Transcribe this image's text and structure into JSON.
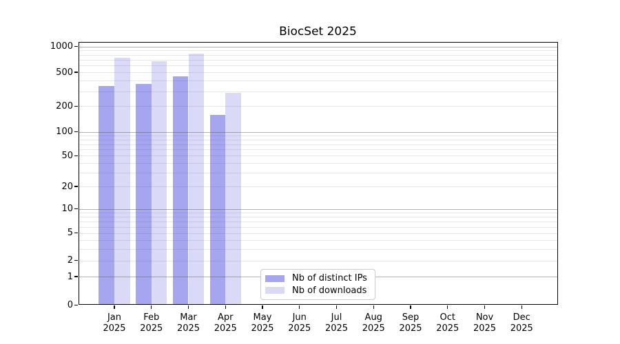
{
  "chart_data": {
    "type": "bar",
    "title": "BiocSet 2025",
    "categories": [
      "Jan",
      "Feb",
      "Mar",
      "Apr",
      "May",
      "Jun",
      "Jul",
      "Aug",
      "Sep",
      "Oct",
      "Nov",
      "Dec"
    ],
    "year_label": "2025",
    "series": [
      {
        "name": "Nb of distinct IPs",
        "color": "#a5a5f0",
        "values": [
          344,
          366,
          451,
          159,
          null,
          null,
          null,
          null,
          null,
          null,
          null,
          null
        ]
      },
      {
        "name": "Nb of downloads",
        "color": "#dadaf8",
        "values": [
          744,
          670,
          827,
          287,
          null,
          null,
          null,
          null,
          null,
          null,
          null,
          null
        ]
      }
    ],
    "y_axis": {
      "scale": "symlog",
      "ticks": [
        0,
        1,
        2,
        5,
        10,
        20,
        50,
        100,
        200,
        500,
        1000
      ],
      "max": 1100
    },
    "legend": {
      "position": "bottom-center",
      "entries": [
        "Nb of distinct IPs",
        "Nb of downloads"
      ],
      "border_color": "#cccccc"
    },
    "grid": {
      "major_lines": [
        1,
        10,
        100,
        1000
      ],
      "major_color": "#b0b0b0",
      "minor_color": "#e6e6e6"
    }
  }
}
